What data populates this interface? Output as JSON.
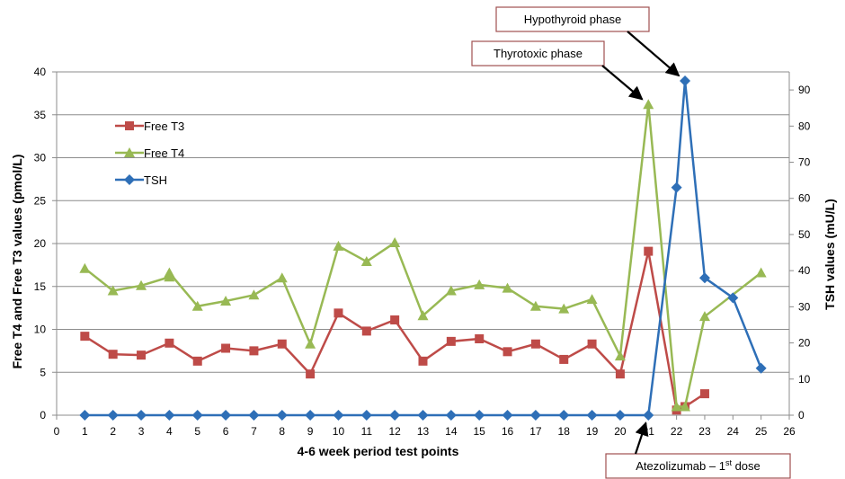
{
  "chart_data": {
    "type": "line",
    "xlabel": "4-6 week period test points",
    "ylabel_left": "Free T4 and Free T3 values (pmol/L)",
    "ylabel_right": "TSH values (mU/L)",
    "xlim": [
      0,
      26
    ],
    "ylim_left": [
      0,
      40
    ],
    "ylim_right": [
      0,
      95
    ],
    "x_ticks": [
      0,
      1,
      2,
      3,
      4,
      5,
      6,
      7,
      8,
      9,
      10,
      11,
      12,
      13,
      14,
      15,
      16,
      17,
      18,
      19,
      20,
      21,
      22,
      23,
      24,
      25,
      26
    ],
    "y_ticks_left": [
      0,
      5,
      10,
      15,
      20,
      25,
      30,
      35,
      40
    ],
    "y_ticks_right": [
      0,
      10,
      20,
      30,
      40,
      50,
      60,
      70,
      80,
      90
    ],
    "grid": "horizontal",
    "legend_position": "top-left",
    "series": [
      {
        "name": "Free T3",
        "axis": "left",
        "color": "#be4b48",
        "marker": "square",
        "points": [
          [
            1,
            9.2
          ],
          [
            2,
            7.1
          ],
          [
            3,
            7.0
          ],
          [
            4,
            8.4
          ],
          [
            5,
            6.3
          ],
          [
            6,
            7.8
          ],
          [
            7,
            7.5
          ],
          [
            8,
            8.3
          ],
          [
            9,
            4.8
          ],
          [
            10,
            11.9
          ],
          [
            11,
            9.8
          ],
          [
            12,
            11.1
          ],
          [
            13,
            6.3
          ],
          [
            14,
            8.6
          ],
          [
            15,
            8.9
          ],
          [
            16,
            7.4
          ],
          [
            17,
            8.3
          ],
          [
            18,
            6.5
          ],
          [
            19,
            8.3
          ],
          [
            20,
            4.8
          ],
          [
            21,
            19.1
          ],
          [
            22,
            0.6
          ],
          [
            22.3,
            1.0
          ],
          [
            23,
            2.5
          ]
        ]
      },
      {
        "name": "Free T4",
        "axis": "left",
        "color": "#98b954",
        "marker": "triangle",
        "points": [
          [
            1,
            17.1
          ],
          [
            2,
            14.5
          ],
          [
            3,
            15.1
          ],
          [
            4,
            16.1
          ],
          [
            4,
            16.6
          ],
          [
            5,
            12.7
          ],
          [
            6,
            13.3
          ],
          [
            7,
            14.0
          ],
          [
            8,
            16.0
          ],
          [
            9,
            8.3
          ],
          [
            10,
            19.7
          ],
          [
            11,
            17.9
          ],
          [
            12,
            20.1
          ],
          [
            13,
            11.6
          ],
          [
            14,
            14.5
          ],
          [
            15,
            15.2
          ],
          [
            16,
            14.8
          ],
          [
            17,
            12.7
          ],
          [
            18,
            12.4
          ],
          [
            19,
            13.5
          ],
          [
            20,
            6.9
          ],
          [
            21,
            36.2
          ],
          [
            22,
            1.0
          ],
          [
            22.3,
            1.0
          ],
          [
            23,
            11.5
          ],
          [
            25,
            16.6
          ]
        ]
      },
      {
        "name": "TSH",
        "axis": "right",
        "color": "#2e6fb7",
        "marker": "diamond",
        "points": [
          [
            1,
            0
          ],
          [
            2,
            0
          ],
          [
            3,
            0
          ],
          [
            4,
            0
          ],
          [
            5,
            0
          ],
          [
            6,
            0
          ],
          [
            7,
            0
          ],
          [
            8,
            0
          ],
          [
            9,
            0
          ],
          [
            10,
            0
          ],
          [
            11,
            0
          ],
          [
            12,
            0
          ],
          [
            13,
            0
          ],
          [
            14,
            0
          ],
          [
            15,
            0
          ],
          [
            16,
            0
          ],
          [
            17,
            0
          ],
          [
            18,
            0
          ],
          [
            19,
            0
          ],
          [
            20,
            0
          ],
          [
            21,
            0
          ],
          [
            22,
            63
          ],
          [
            22.3,
            92.5
          ],
          [
            23,
            38
          ],
          [
            24,
            32.5
          ],
          [
            25,
            13
          ]
        ]
      }
    ],
    "annotations": [
      {
        "text": "Hypothyroid phase",
        "target": [
          22.3,
          92.5
        ],
        "target_axis": "right"
      },
      {
        "text": "Thyrotoxic phase",
        "target": [
          21,
          36.2
        ],
        "target_axis": "left"
      },
      {
        "text": "Atezolizumab – 1",
        "superscript": "st",
        "text_after": " dose",
        "target": [
          21,
          0
        ],
        "target_axis": "left"
      }
    ]
  }
}
